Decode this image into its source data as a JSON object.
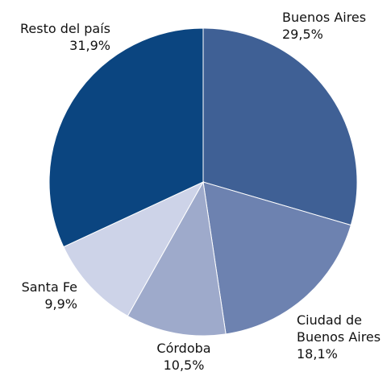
{
  "chart_data": {
    "type": "pie",
    "categories": [
      "Buenos Aires",
      "Ciudad de Buenos Aires",
      "Córdoba",
      "Santa Fe",
      "Resto del país"
    ],
    "values": [
      29.5,
      18.1,
      10.5,
      9.9,
      31.9
    ],
    "value_labels": [
      "29,5%",
      "18,1%",
      "10,5%",
      "9,9%",
      "31,9%"
    ],
    "colors": [
      "#3f6095",
      "#6d82b0",
      "#9eaacb",
      "#cdd3e8",
      "#0b4580"
    ]
  }
}
